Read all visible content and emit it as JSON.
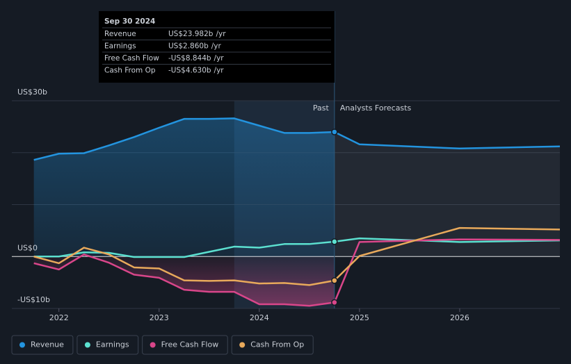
{
  "chart_data": {
    "type": "line",
    "x": [
      2021.75,
      2022,
      2022.25,
      2022.5,
      2022.75,
      2023,
      2023.25,
      2023.5,
      2023.75,
      2024,
      2024.25,
      2024.5,
      2024.75,
      2025,
      2026,
      2027
    ],
    "series": [
      {
        "name": "Revenue",
        "color": "#2394df",
        "values": [
          18.6,
          19.8,
          19.9,
          21.4,
          23.0,
          24.8,
          26.5,
          26.5,
          26.6,
          25.2,
          23.8,
          23.8,
          23.982,
          21.6,
          20.8,
          21.2
        ]
      },
      {
        "name": "Earnings",
        "color": "#5ce0d0",
        "values": [
          0,
          0,
          0.8,
          0.7,
          -0.1,
          -0.1,
          -0.1,
          0.9,
          1.9,
          1.7,
          2.4,
          2.4,
          2.86,
          3.5,
          2.8,
          3.1
        ]
      },
      {
        "name": "Free Cash Flow",
        "color": "#d9468a",
        "values": [
          -1.3,
          -2.5,
          0.4,
          -1.2,
          -3.5,
          -4.1,
          -6.4,
          -6.8,
          -6.8,
          -9.2,
          -9.2,
          -9.5,
          -8.844,
          2.8,
          3.3,
          3.2
        ]
      },
      {
        "name": "Cash From Op",
        "color": "#e8a95b",
        "values": [
          0,
          -1.3,
          1.7,
          0.4,
          -2.1,
          -2.3,
          -4.6,
          -4.7,
          -4.6,
          -5.2,
          -5.1,
          -5.5,
          -4.63,
          0.1,
          5.5,
          5.2
        ]
      }
    ],
    "xlim": [
      2021.53,
      2027.0
    ],
    "xticks": [
      2022,
      2023,
      2024,
      2025,
      2026
    ],
    "ylim": [
      -10,
      30
    ],
    "yticks": [
      {
        "value": -10,
        "label": "-US$10b"
      },
      {
        "value": 0,
        "label": "US$0"
      },
      {
        "value": 10,
        "label": null
      },
      {
        "value": 20,
        "label": null
      },
      {
        "value": 30,
        "label": "US$30b"
      }
    ],
    "grid": true,
    "past_label": "Past",
    "forecast_label": "Analysts Forecasts",
    "tooltip": {
      "date": "Sep 30 2024",
      "unit": "/yr",
      "rows": [
        {
          "label": "Revenue",
          "value": "US$23.982b"
        },
        {
          "label": "Earnings",
          "value": "US$2.860b"
        },
        {
          "label": "Free Cash Flow",
          "value": "-US$8.844b"
        },
        {
          "label": "Cash From Op",
          "value": "-US$4.630b"
        }
      ]
    }
  }
}
